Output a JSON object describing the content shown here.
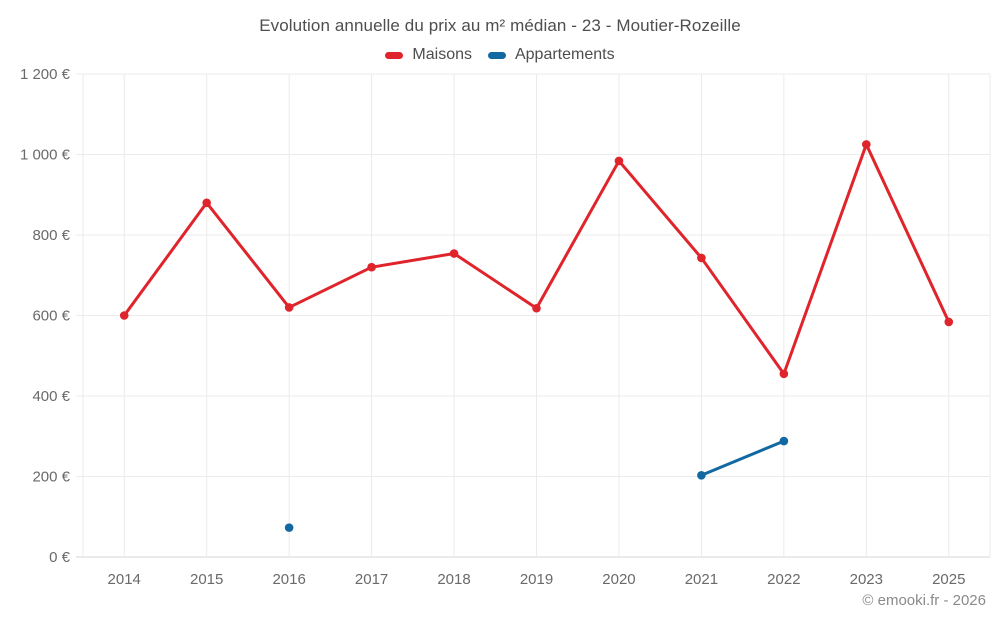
{
  "chart_data": {
    "type": "line",
    "title": "Evolution annuelle du prix au m² médian - 23 - Moutier-Rozeille",
    "xlabel": "",
    "ylabel": "",
    "categories": [
      "2014",
      "2015",
      "2016",
      "2017",
      "2018",
      "2019",
      "2020",
      "2021",
      "2022",
      "2023",
      "2025"
    ],
    "series": [
      {
        "name": "Maisons",
        "color": "#e0242b",
        "values": [
          600,
          880,
          620,
          720,
          754,
          618,
          984,
          743,
          455,
          1025,
          584
        ]
      },
      {
        "name": "Appartements",
        "color": "#1269a2",
        "values": [
          null,
          null,
          73,
          null,
          null,
          null,
          null,
          203,
          288,
          null,
          null
        ]
      }
    ],
    "ylim": [
      0,
      1200
    ],
    "yticks": [
      {
        "value": 0,
        "label": "0 €"
      },
      {
        "value": 200,
        "label": "200 €"
      },
      {
        "value": 400,
        "label": "400 €"
      },
      {
        "value": 600,
        "label": "600 €"
      },
      {
        "value": 800,
        "label": "800 €"
      },
      {
        "value": 1000,
        "label": "1 000 €"
      },
      {
        "value": 1200,
        "label": "1 200 €"
      }
    ],
    "grid": true,
    "legend_position": "top"
  },
  "footer": {
    "text": "© emooki.fr - 2026"
  }
}
